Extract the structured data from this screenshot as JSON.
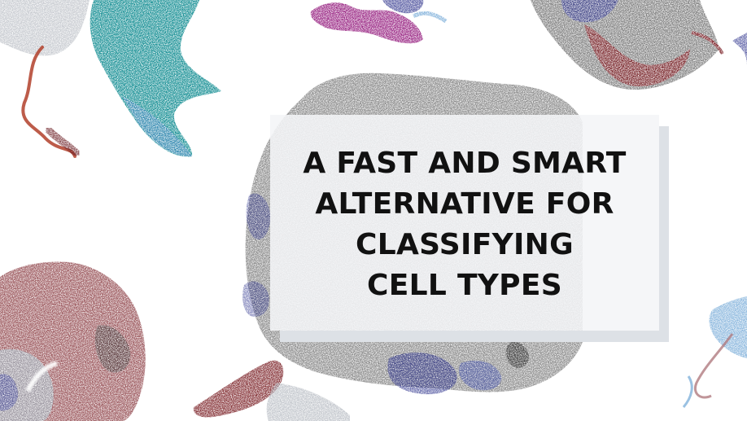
{
  "title": {
    "lines": [
      "A FAST AND SMART",
      "ALTERNATIVE FOR",
      "CLASSIFYING",
      "CELL TYPES"
    ]
  },
  "decoration": {
    "description_colors": {
      "teal": "#178f94",
      "dark_red": "#7a1f25",
      "navy": "#2a2f8a",
      "magenta": "#9b2a86",
      "black": "#1a1a1a",
      "light_blue": "#6fa6d6"
    }
  }
}
